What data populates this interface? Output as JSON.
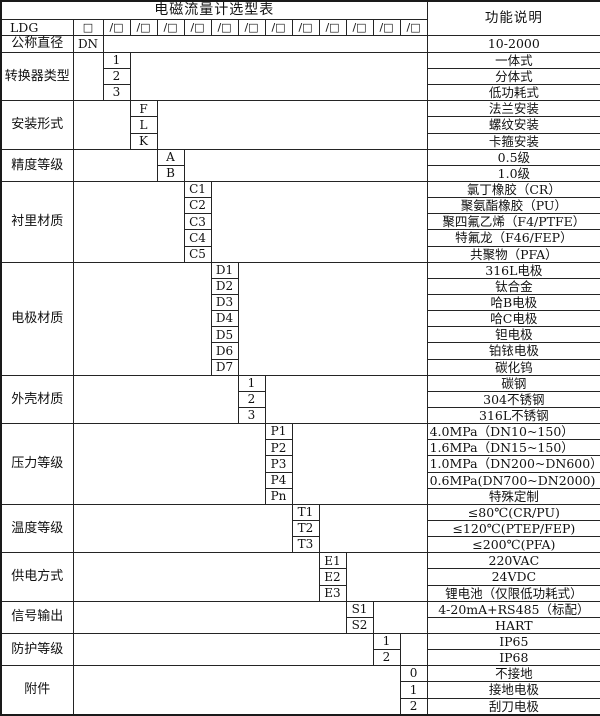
{
  "page": {
    "title": "电磁流量计选型表",
    "function_header": "功能说明",
    "background": "#ffffff",
    "border_color": "#1a1a1a",
    "text_color": "#111111"
  },
  "model_row": {
    "label": "LDG",
    "first_box": "□",
    "slash_box": "/□",
    "slash_count": 12
  },
  "sections": [
    {
      "label": "公称直径",
      "code_col": 1,
      "rows": [
        {
          "code": "DN",
          "desc": "10-2000"
        }
      ]
    },
    {
      "label": "转换器类型",
      "code_col": 2,
      "rows": [
        {
          "code": "1",
          "desc": "一体式"
        },
        {
          "code": "2",
          "desc": "分体式"
        },
        {
          "code": "3",
          "desc": "低功耗式"
        }
      ]
    },
    {
      "label": "安装形式",
      "code_col": 3,
      "rows": [
        {
          "code": "F",
          "desc": "法兰安装"
        },
        {
          "code": "L",
          "desc": "螺纹安装"
        },
        {
          "code": "K",
          "desc": "卡箍安装"
        }
      ]
    },
    {
      "label": "精度等级",
      "code_col": 4,
      "rows": [
        {
          "code": "A",
          "desc": "0.5级"
        },
        {
          "code": "B",
          "desc": "1.0级"
        }
      ]
    },
    {
      "label": "衬里材质",
      "code_col": 5,
      "rows": [
        {
          "code": "C1",
          "desc": "氯丁橡胶（CR）"
        },
        {
          "code": "C2",
          "desc": "聚氨酯橡胶（PU）"
        },
        {
          "code": "C3",
          "desc": "聚四氟乙烯（F4/PTFE）"
        },
        {
          "code": "C4",
          "desc": "特氟龙（F46/FEP）"
        },
        {
          "code": "C5",
          "desc": "共聚物（PFA）"
        }
      ]
    },
    {
      "label": "电极材质",
      "code_col": 6,
      "rows": [
        {
          "code": "D1",
          "desc": "316L电极"
        },
        {
          "code": "D2",
          "desc": "钛合金"
        },
        {
          "code": "D3",
          "desc": "哈B电极"
        },
        {
          "code": "D4",
          "desc": "哈C电极"
        },
        {
          "code": "D5",
          "desc": "钽电极"
        },
        {
          "code": "D6",
          "desc": "铂铱电极"
        },
        {
          "code": "D7",
          "desc": "碳化钨"
        }
      ]
    },
    {
      "label": "外壳材质",
      "code_col": 7,
      "rows": [
        {
          "code": "1",
          "desc": "碳钢"
        },
        {
          "code": "2",
          "desc": "304不锈钢"
        },
        {
          "code": "3",
          "desc": "316L不锈钢"
        }
      ]
    },
    {
      "label": "压力等级",
      "code_col": 8,
      "rows": [
        {
          "code": "P1",
          "desc": "4.0MPa（DN10~150）",
          "align": "left"
        },
        {
          "code": "P2",
          "desc": "1.6MPa（DN15~150）",
          "align": "left"
        },
        {
          "code": "P3",
          "desc": "1.0MPa（DN200~DN600）",
          "align": "left"
        },
        {
          "code": "P4",
          "desc": "0.6MPa(DN700~DN2000)",
          "align": "left"
        },
        {
          "code": "Pn",
          "desc": "特殊定制"
        }
      ]
    },
    {
      "label": "温度等级",
      "code_col": 9,
      "rows": [
        {
          "code": "T1",
          "desc": "≤80℃(CR/PU)"
        },
        {
          "code": "T2",
          "desc": "≤120℃(PTEP/FEP)"
        },
        {
          "code": "T3",
          "desc": "≤200℃(PFA)"
        }
      ]
    },
    {
      "label": "供电方式",
      "code_col": 10,
      "rows": [
        {
          "code": "E1",
          "desc": "220VAC"
        },
        {
          "code": "E2",
          "desc": "24VDC"
        },
        {
          "code": "E3",
          "desc": "锂电池（仅限低功耗式）"
        }
      ]
    },
    {
      "label": "信号输出",
      "code_col": 11,
      "rows": [
        {
          "code": "S1",
          "desc": "4-20mA+RS485（标配）"
        },
        {
          "code": "S2",
          "desc": "HART"
        }
      ]
    },
    {
      "label": "防护等级",
      "code_col": 12,
      "rows": [
        {
          "code": "1",
          "desc": "IP65"
        },
        {
          "code": "2",
          "desc": "IP68"
        }
      ]
    },
    {
      "label": "附件",
      "code_col": 13,
      "rows": [
        {
          "code": "0",
          "desc": "不接地"
        },
        {
          "code": "1",
          "desc": "接地电极"
        },
        {
          "code": "2",
          "desc": "刮刀电极"
        }
      ]
    }
  ]
}
